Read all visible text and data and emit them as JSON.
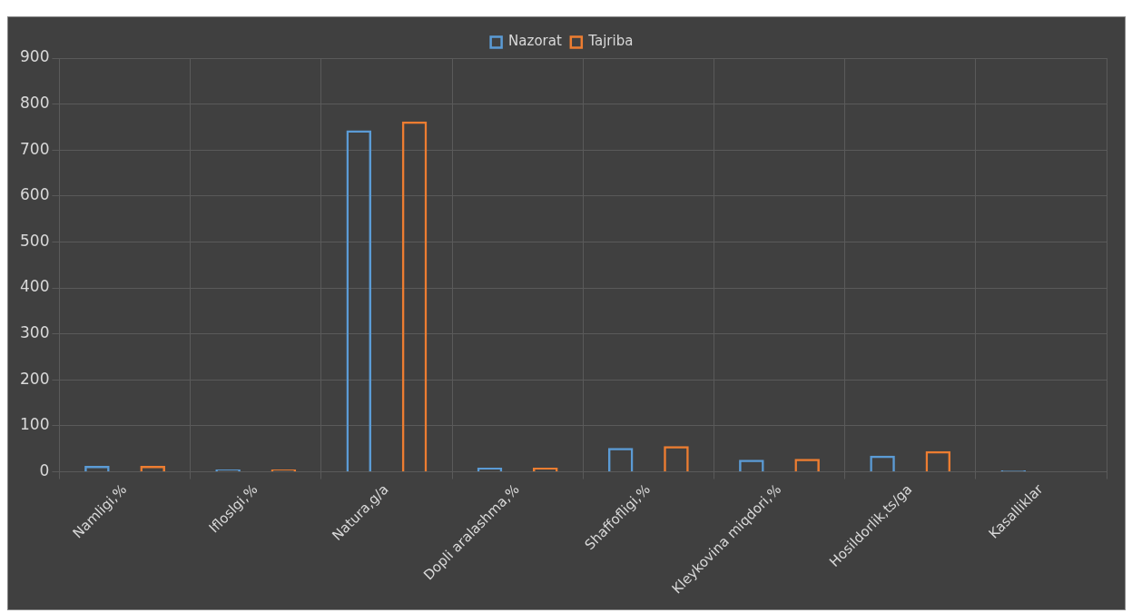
{
  "chart_data": {
    "type": "bar",
    "categories": [
      "Namligi,%",
      "Ifloslgi,%",
      "Natura,g/a",
      "Dopli aralashma,%",
      "Shaffofligi,%",
      "Kleykovina miqdori,%",
      "Hosildorlik,ts/ga",
      "Kasalliklar"
    ],
    "series": [
      {
        "name": "Nazorat",
        "color": "#5b9bd5",
        "values": [
          13,
          5,
          743,
          9,
          52,
          26,
          35,
          3
        ]
      },
      {
        "name": "Tajriba",
        "color": "#ed7d31",
        "values": [
          13,
          5,
          762,
          9,
          56,
          28,
          45,
          null
        ]
      }
    ],
    "ylim": [
      0,
      900
    ],
    "yticks": [
      0,
      100,
      200,
      300,
      400,
      500,
      600,
      700,
      800,
      900
    ],
    "grid": true,
    "legend": "top"
  }
}
